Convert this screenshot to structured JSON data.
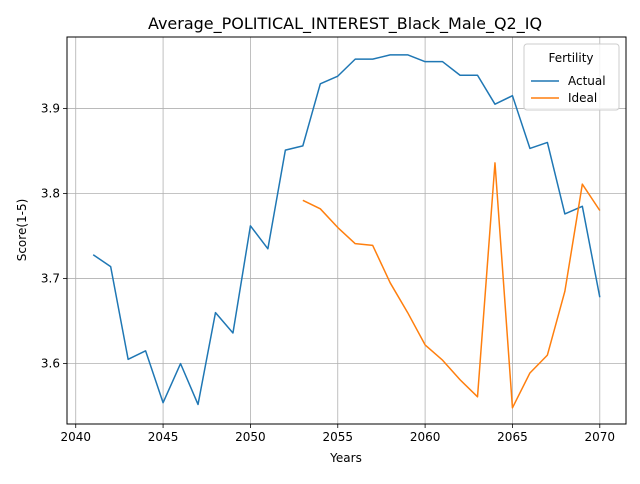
{
  "chart_data": {
    "type": "line",
    "title": "Average_POLITICAL_INTEREST_Black_Male_Q2_IQ",
    "xlabel": "Years",
    "ylabel": "Score(1-5)",
    "xlim": [
      2039.5,
      2071.5
    ],
    "ylim": [
      3.529,
      3.984
    ],
    "x_ticks": [
      2040,
      2045,
      2050,
      2055,
      2060,
      2065,
      2070
    ],
    "y_ticks": [
      3.6,
      3.7,
      3.8,
      3.9
    ],
    "grid": true,
    "legend": {
      "title": "Fertility",
      "placement": "top-right"
    },
    "series": [
      {
        "name": "Actual",
        "color": "#1f77b4",
        "points": [
          [
            2041,
            3.728
          ],
          [
            2042,
            3.714
          ],
          [
            2043,
            3.605
          ],
          [
            2044,
            3.615
          ],
          [
            2045,
            3.554
          ],
          [
            2046,
            3.6
          ],
          [
            2047,
            3.552
          ],
          [
            2048,
            3.66
          ],
          [
            2049,
            3.636
          ],
          [
            2050,
            3.762
          ],
          [
            2051,
            3.735
          ],
          [
            2052,
            3.851
          ],
          [
            2053,
            3.856
          ],
          [
            2054,
            3.929
          ],
          [
            2055,
            3.938
          ],
          [
            2056,
            3.958
          ],
          [
            2057,
            3.958
          ],
          [
            2058,
            3.963
          ],
          [
            2059,
            3.963
          ],
          [
            2060,
            3.955
          ],
          [
            2061,
            3.955
          ],
          [
            2062,
            3.939
          ],
          [
            2063,
            3.939
          ],
          [
            2064,
            3.905
          ],
          [
            2065,
            3.915
          ],
          [
            2066,
            3.853
          ],
          [
            2067,
            3.86
          ],
          [
            2068,
            3.776
          ],
          [
            2069,
            3.785
          ],
          [
            2070,
            3.678
          ]
        ]
      },
      {
        "name": "Ideal",
        "color": "#ff7f0e",
        "points": [
          [
            2053,
            3.792
          ],
          [
            2054,
            3.782
          ],
          [
            2055,
            3.76
          ],
          [
            2056,
            3.741
          ],
          [
            2057,
            3.739
          ],
          [
            2058,
            3.695
          ],
          [
            2059,
            3.66
          ],
          [
            2060,
            3.622
          ],
          [
            2061,
            3.604
          ],
          [
            2062,
            3.581
          ],
          [
            2063,
            3.561
          ],
          [
            2064,
            3.836
          ],
          [
            2065,
            3.548
          ],
          [
            2066,
            3.589
          ],
          [
            2067,
            3.61
          ],
          [
            2068,
            3.685
          ],
          [
            2069,
            3.811
          ],
          [
            2070,
            3.78
          ]
        ]
      }
    ]
  }
}
